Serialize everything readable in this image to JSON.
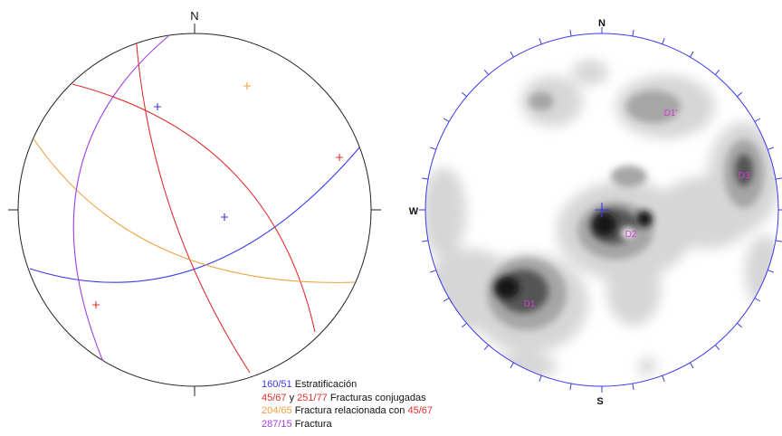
{
  "left_net": {
    "north_label": "N",
    "colors": {
      "bedding": "#3a3ae8",
      "conjugate": "#e03030",
      "related": "#f0a040",
      "fracture": "#a040e0"
    }
  },
  "right_net": {
    "north_label": "N",
    "south_label": "S",
    "west_label": "W",
    "density_labels": [
      "D1",
      "D2",
      "D3",
      "D1'"
    ],
    "tick_color": "#3a3ae8",
    "label_color": "#d040d0"
  },
  "legend": {
    "row1": {
      "value": "160/51",
      "text": " Estratificación",
      "value_color": "#3a3ae8"
    },
    "row2": {
      "value_a": "45/67",
      "sep": " y ",
      "value_b": "251/77",
      "text": "  Fracturas conjugadas",
      "value_color": "#e03030"
    },
    "row3": {
      "value": "204/65",
      "text": " Fractura relacionada con ",
      "ref": "45/67",
      "value_color": "#f0a040",
      "ref_color": "#e03030"
    },
    "row4": {
      "value": "287/15",
      "text": " Fractura",
      "value_color": "#a040e0"
    }
  }
}
